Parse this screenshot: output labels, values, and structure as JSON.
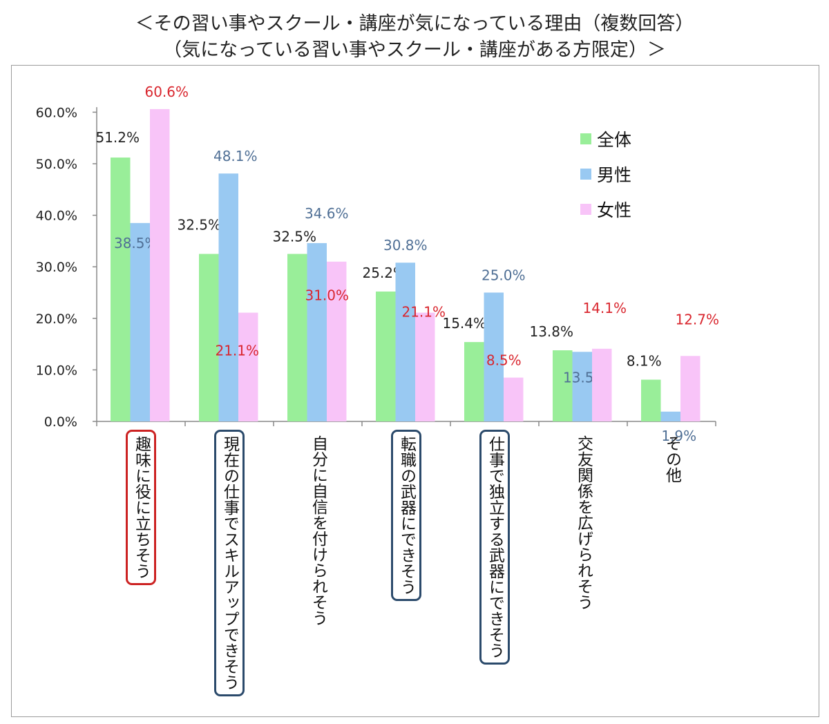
{
  "titles": {
    "line1": "＜その習い事やスクール・講座が気になっている理由（複数回答）",
    "line2": "（気になっている習い事やスクール・講座がある方限定）＞"
  },
  "chart_data": {
    "type": "bar",
    "categories": [
      "趣味に役に立ちそう",
      "現在の仕事でスキルアップできそう",
      "自分に自信を付けられそう",
      "転職の武器にできそう",
      "仕事で独立する武器にできそう",
      "交友関係を広げられそう",
      "その他"
    ],
    "series": [
      {
        "name": "全体",
        "color": "#99ee99",
        "label_color": "#222222",
        "values": [
          51.2,
          32.5,
          32.5,
          25.2,
          15.4,
          13.8,
          8.1
        ]
      },
      {
        "name": "男性",
        "color": "#99c9f2",
        "label_color": "#4f6f95",
        "values": [
          38.5,
          48.1,
          34.6,
          30.8,
          25.0,
          13.5,
          1.9
        ]
      },
      {
        "name": "女性",
        "color": "#f8c4f8",
        "label_color": "#d9262e",
        "values": [
          60.6,
          21.1,
          31.0,
          21.1,
          8.5,
          14.1,
          12.7
        ]
      }
    ],
    "value_labels": [
      [
        "51.2%",
        "32.5%",
        "32.5%",
        "25.2%",
        "15.4%",
        "13.8%",
        "8.1%"
      ],
      [
        "38.5%",
        "48.1%",
        "34.6%",
        "30.8%",
        "25.0%",
        "13.5%",
        "1.9%"
      ],
      [
        "60.6%",
        "21.1%",
        "31.0%",
        "21.1%",
        "8.5%",
        "14.1%",
        "12.7%"
      ]
    ],
    "y_ticks": [
      "0.0%",
      "10.0%",
      "20.0%",
      "30.0%",
      "40.0%",
      "50.0%",
      "60.0%"
    ],
    "ylim": [
      0,
      65
    ],
    "grid": false,
    "legend": "top-right",
    "highlighted_categories": [
      {
        "index": 0,
        "color": "#cc2222"
      },
      {
        "index": 1,
        "color": "#2b4a6b"
      },
      {
        "index": 3,
        "color": "#2b4a6b"
      },
      {
        "index": 4,
        "color": "#2b4a6b"
      }
    ]
  }
}
